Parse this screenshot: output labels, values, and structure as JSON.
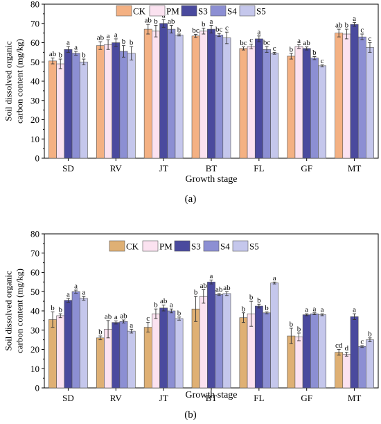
{
  "figure": {
    "panels": [
      "(a)",
      "(b)"
    ]
  },
  "chart_data": [
    {
      "type": "bar",
      "panel_label": "(a)",
      "xlabel": "Growth stage",
      "ylabel": "Soil dissolved organic carbon content (mg/kg)",
      "ylabel_lines": [
        "Soil dissolved organic",
        "carbon content (mg/kg)"
      ],
      "ylim": [
        0,
        80
      ],
      "yticks": [
        0,
        10,
        20,
        30,
        40,
        50,
        60,
        70,
        80
      ],
      "categories": [
        "SD",
        "RV",
        "JT",
        "BT",
        "FL",
        "GF",
        "MT"
      ],
      "legend": "top",
      "series": [
        {
          "name": "CK",
          "color": "#f4b183",
          "values": [
            50.5,
            58.5,
            67,
            63.5,
            57,
            53,
            65
          ],
          "errors": [
            1.5,
            2,
            2.5,
            0.8,
            0.8,
            1.5,
            2
          ],
          "letters": [
            "ab",
            "ab",
            "ab",
            "bc",
            "bc",
            "b",
            "ab"
          ]
        },
        {
          "name": "PM",
          "color": "#fbe2f0",
          "values": [
            49,
            59,
            66,
            66,
            58,
            58,
            64.5
          ],
          "errors": [
            2.5,
            2.5,
            3,
            1.5,
            1.2,
            1,
            2.5
          ],
          "letters": [
            "b",
            "a",
            "b",
            "b",
            "c",
            "a",
            "b"
          ]
        },
        {
          "name": "S3",
          "color": "#4a4a9e",
          "values": [
            56.5,
            60,
            70,
            67,
            62,
            57,
            69.5
          ],
          "errors": [
            1.5,
            2,
            2,
            2,
            1.5,
            0.8,
            1
          ],
          "letters": [
            "a",
            "a",
            "a",
            "a",
            "a",
            "ab",
            "a"
          ]
        },
        {
          "name": "S4",
          "color": "#8c8fd3",
          "values": [
            54.5,
            55.5,
            67,
            64,
            56.5,
            52,
            63
          ],
          "errors": [
            1,
            3,
            2,
            0.8,
            1.5,
            0.8,
            1.5
          ],
          "letters": [
            "a",
            "b",
            "ab",
            "bc",
            "bc",
            "b",
            "c"
          ]
        },
        {
          "name": "S5",
          "color": "#c5c7ec",
          "values": [
            50,
            54.5,
            64,
            62.5,
            54.5,
            48,
            57.5
          ],
          "errors": [
            1.5,
            3.5,
            0.5,
            3,
            0.5,
            0.5,
            2.5
          ],
          "letters": [
            "b",
            "b",
            "b",
            "c",
            "c",
            "c",
            "c"
          ]
        }
      ]
    },
    {
      "type": "bar",
      "panel_label": "(b)",
      "xlabel": "Growth stage",
      "ylabel": "Soil dissolved organic carbon content (mg/kg)",
      "ylabel_lines": [
        "Soil dissolved organic",
        "carbon content (mg/kg)"
      ],
      "ylim": [
        0,
        80
      ],
      "yticks": [
        0,
        10,
        20,
        30,
        40,
        50,
        60,
        70,
        80
      ],
      "categories": [
        "SD",
        "RV",
        "JT",
        "BT",
        "FL",
        "GF",
        "MT"
      ],
      "legend": "top",
      "series": [
        {
          "name": "CK",
          "color": "#dfb074",
          "values": [
            35.5,
            26,
            31.5,
            41,
            36.5,
            27,
            18.5
          ],
          "errors": [
            4,
            1,
            2.5,
            6.5,
            2.5,
            4,
            1.5
          ],
          "letters": [
            "b",
            "b",
            "c",
            "b",
            "b",
            "b",
            "cd"
          ]
        },
        {
          "name": "PM",
          "color": "#fbe2f0",
          "values": [
            37.5,
            30.5,
            38.5,
            47.5,
            38.5,
            26.5,
            17.5
          ],
          "errors": [
            1,
            4.5,
            2.5,
            3.5,
            6.5,
            2,
            1
          ],
          "letters": [
            "b",
            "ab",
            "b",
            "ab",
            "b",
            "b",
            "d"
          ]
        },
        {
          "name": "S3",
          "color": "#4a4a9e",
          "values": [
            45.5,
            34,
            41.5,
            55,
            42.5,
            38,
            37
          ],
          "errors": [
            1,
            0.8,
            1.5,
            1,
            1,
            0.5,
            1.5
          ],
          "letters": [
            "a",
            "a",
            "ab",
            "a",
            "b",
            "a",
            "a"
          ]
        },
        {
          "name": "S4",
          "color": "#8c8fd3",
          "values": [
            50,
            34.5,
            40,
            48.5,
            39,
            38.5,
            21.5
          ],
          "errors": [
            0.8,
            0.8,
            1,
            0.5,
            0.5,
            0.5,
            0.5
          ],
          "letters": [
            "a",
            "ab",
            "a",
            "ab",
            "b",
            "a",
            "c"
          ]
        },
        {
          "name": "S5",
          "color": "#c5c7ec",
          "values": [
            46.5,
            29.5,
            36,
            49,
            54.5,
            38,
            25
          ],
          "errors": [
            1,
            1,
            0.8,
            1,
            0.5,
            0.5,
            1
          ],
          "letters": [
            "a",
            "a",
            "b",
            "ab",
            "a",
            "a",
            "b"
          ]
        }
      ]
    }
  ]
}
